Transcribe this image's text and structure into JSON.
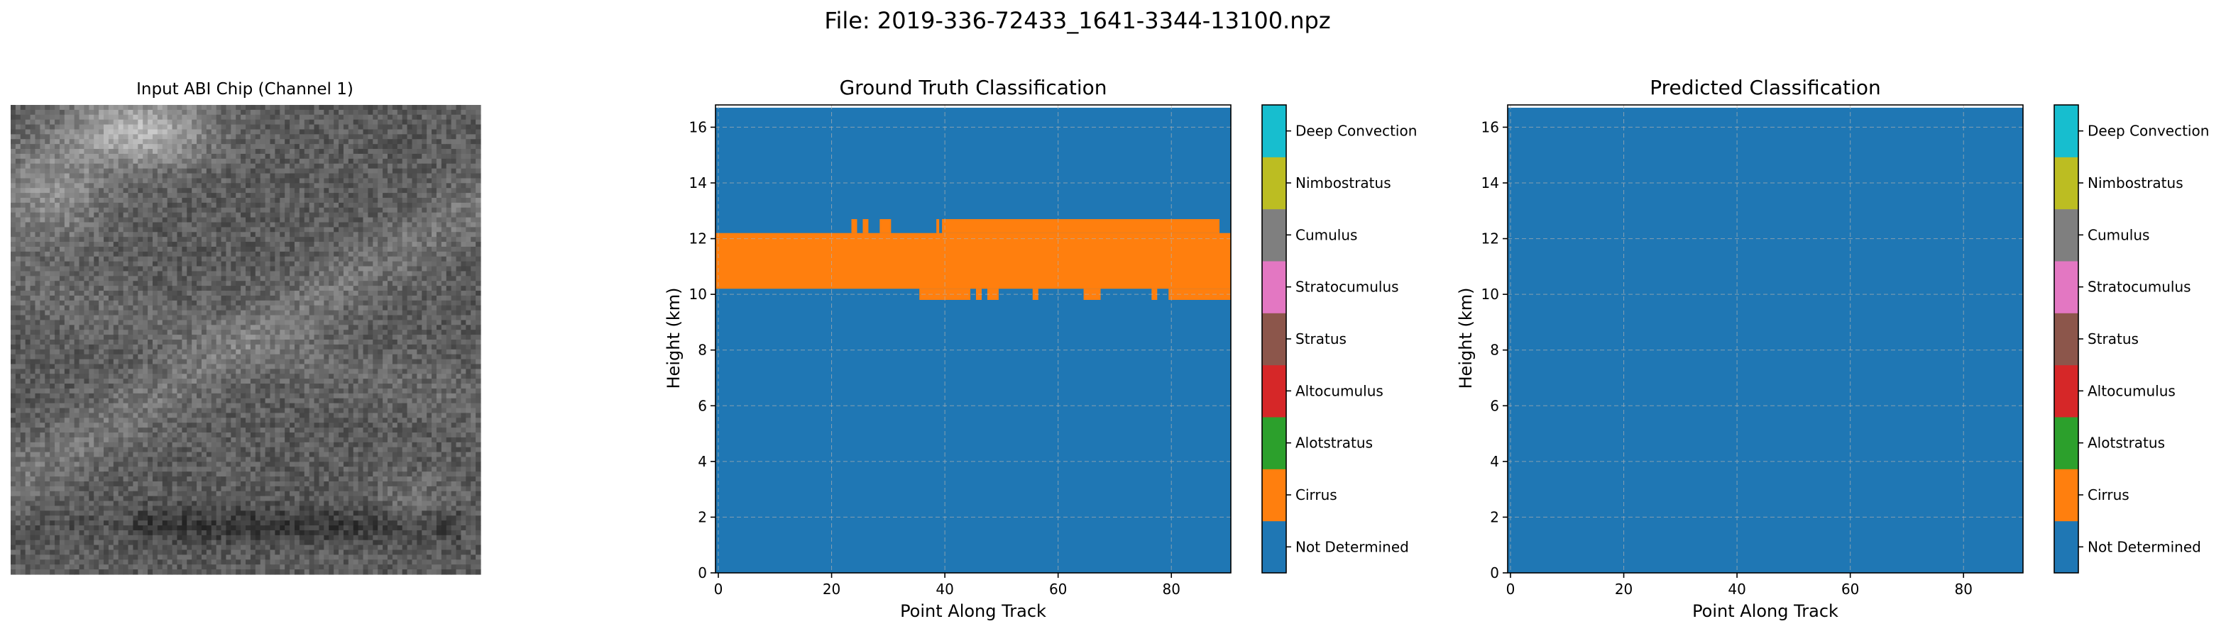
{
  "suptitle": "File: 2019-336-72433_1641-3344-13100.npz",
  "chart_data": [
    {
      "type": "image",
      "title": "Input ABI Chip (Channel 1)",
      "colormap": "gray",
      "description_pixels": "grayscale satellite chip; brighter wisps in upper-left and diagonal band, dark streak near bottom"
    },
    {
      "type": "heatmap",
      "title": "Ground Truth Classification",
      "xlabel": "Point Along Track",
      "ylabel": "Height (km)",
      "xlim": [
        -0.5,
        90.5
      ],
      "ylim": [
        0,
        16.8
      ],
      "axis_top": 16.7,
      "xticks": [
        0,
        20,
        40,
        60,
        80
      ],
      "yticks": [
        0,
        2,
        4,
        6,
        8,
        10,
        12,
        14,
        16
      ],
      "grid": true,
      "background_class": "Not Determined",
      "regions": [
        {
          "class": "Cirrus",
          "x": [
            -0.5,
            90.5
          ],
          "y": [
            10.2,
            12.2
          ]
        },
        {
          "class": "Cirrus",
          "x": [
            39.5,
            88.5
          ],
          "y": [
            12.2,
            12.7
          ]
        },
        {
          "class": "Cirrus",
          "x": [
            23.5,
            24.5
          ],
          "y": [
            12.2,
            12.7
          ]
        },
        {
          "class": "Cirrus",
          "x": [
            25.5,
            26.5
          ],
          "y": [
            12.2,
            12.7
          ]
        },
        {
          "class": "Cirrus",
          "x": [
            28.5,
            30.5
          ],
          "y": [
            12.2,
            12.7
          ]
        },
        {
          "class": "Cirrus",
          "x": [
            38.5,
            39.0
          ],
          "y": [
            12.2,
            12.7
          ]
        },
        {
          "class": "Cirrus",
          "x": [
            35.5,
            44.5
          ],
          "y": [
            9.8,
            10.2
          ]
        },
        {
          "class": "Cirrus",
          "x": [
            45.5,
            46.5
          ],
          "y": [
            9.8,
            10.2
          ]
        },
        {
          "class": "Cirrus",
          "x": [
            47.5,
            49.5
          ],
          "y": [
            9.8,
            10.2
          ]
        },
        {
          "class": "Cirrus",
          "x": [
            55.5,
            56.5
          ],
          "y": [
            9.8,
            10.2
          ]
        },
        {
          "class": "Cirrus",
          "x": [
            64.5,
            67.5
          ],
          "y": [
            9.8,
            10.2
          ]
        },
        {
          "class": "Cirrus",
          "x": [
            76.5,
            77.5
          ],
          "y": [
            9.8,
            10.2
          ]
        },
        {
          "class": "Cirrus",
          "x": [
            79.5,
            90.5
          ],
          "y": [
            9.8,
            10.2
          ]
        }
      ]
    },
    {
      "type": "heatmap",
      "title": "Predicted Classification",
      "xlabel": "Point Along Track",
      "ylabel": "Height (km)",
      "xlim": [
        -0.5,
        90.5
      ],
      "ylim": [
        0,
        16.8
      ],
      "axis_top": 16.7,
      "xticks": [
        0,
        20,
        40,
        60,
        80
      ],
      "yticks": [
        0,
        2,
        4,
        6,
        8,
        10,
        12,
        14,
        16
      ],
      "grid": true,
      "background_class": "Not Determined",
      "regions": []
    }
  ],
  "classes": [
    {
      "name": "Not Determined",
      "color": "#1f77b4"
    },
    {
      "name": "Cirrus",
      "color": "#ff7f0e"
    },
    {
      "name": "Alotstratus",
      "color": "#2ca02c"
    },
    {
      "name": "Altocumulus",
      "color": "#d62728"
    },
    {
      "name": "Stratus",
      "color": "#8c564b"
    },
    {
      "name": "Stratocumulus",
      "color": "#e377c2"
    },
    {
      "name": "Cumulus",
      "color": "#7f7f7f"
    },
    {
      "name": "Nimbostratus",
      "color": "#bcbd22"
    },
    {
      "name": "Deep Convection",
      "color": "#17becf"
    }
  ]
}
